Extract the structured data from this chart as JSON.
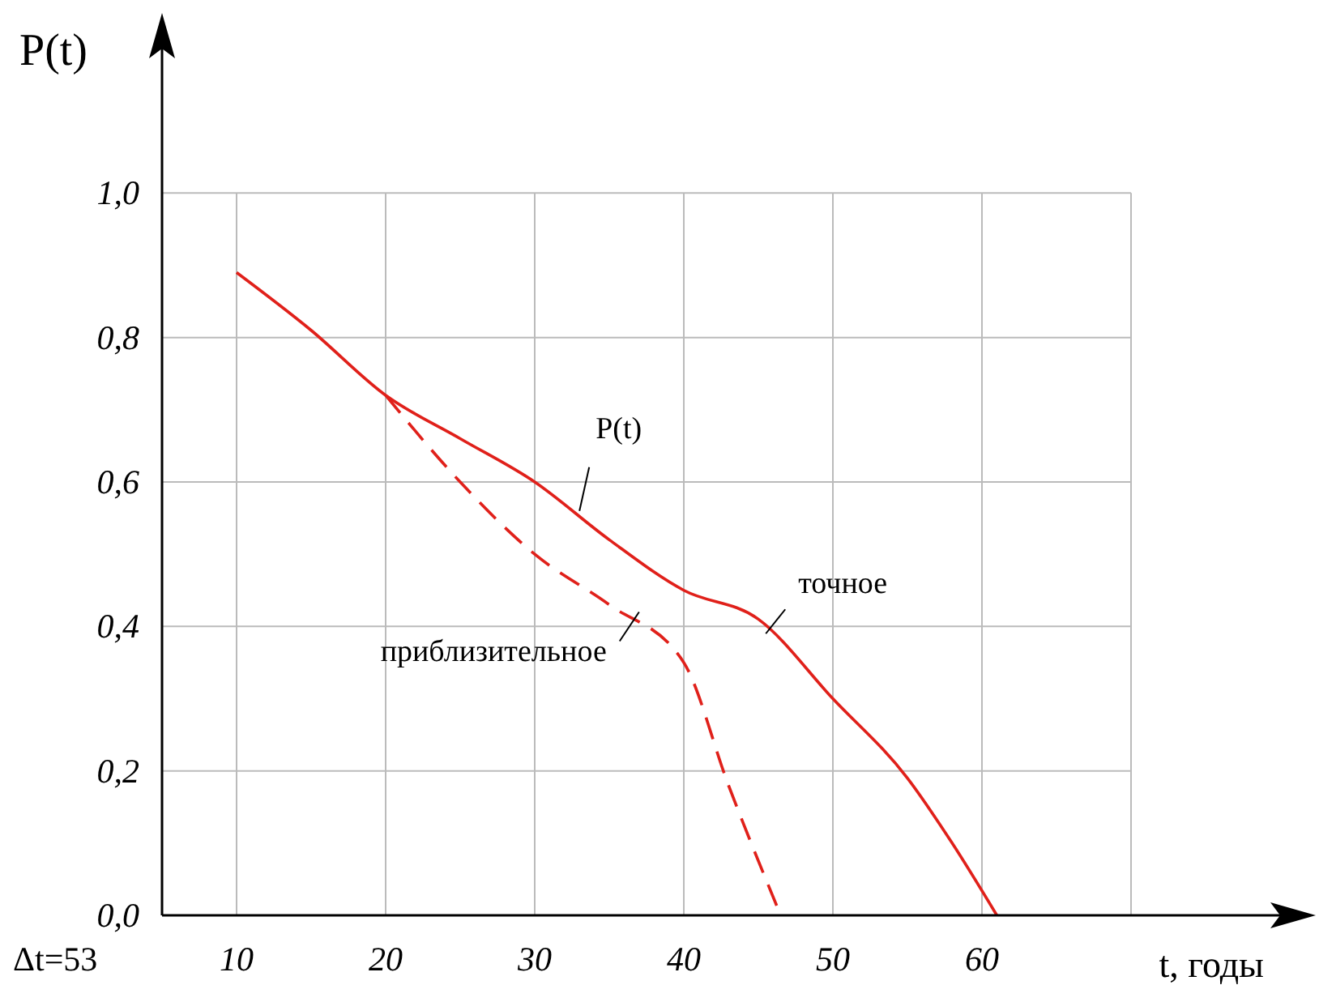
{
  "chart_data": {
    "type": "line",
    "xlabel": "t, годы",
    "ylabel": "P(t)",
    "xlim": [
      5,
      80
    ],
    "ylim": [
      0,
      1.2
    ],
    "xticks": [
      10,
      20,
      30,
      40,
      50,
      60,
      {
        "value": 70,
        "label": null
      }
    ],
    "yticks": [
      {
        "value": 0,
        "label": "0,0"
      },
      {
        "value": 0.2,
        "label": "0,2"
      },
      {
        "value": 0.4,
        "label": "0,4"
      },
      {
        "value": 0.6,
        "label": "0,6"
      },
      {
        "value": 0.8,
        "label": "0,8"
      },
      {
        "value": 1,
        "label": "1,0"
      }
    ],
    "grid": true,
    "series": [
      {
        "color": "#e0201a",
        "line_style": "solid",
        "x": [
          10,
          15,
          20,
          25,
          30,
          35,
          40,
          45,
          50,
          55,
          58,
          61
        ],
        "values": [
          0.89,
          0.81,
          0.72,
          0.66,
          0.6,
          0.52,
          0.45,
          0.41,
          0.3,
          0.19,
          0.1,
          0
        ]
      },
      {
        "color": "#e0201a",
        "line_style": "dashed",
        "x": [
          20,
          25,
          30,
          35,
          40,
          43,
          46.5
        ],
        "values": [
          0.72,
          0.6,
          0.5,
          0.43,
          0.35,
          0.18,
          0
        ]
      }
    ],
    "annotations": [
      {
        "text": "P(t)",
        "x": 33,
        "y": 0.56
      },
      {
        "text": "точное",
        "x": 45.5,
        "y": 0.39
      },
      {
        "text": "приблизительное",
        "x": 37,
        "y": 0.42
      },
      "Δt=53"
    ]
  }
}
